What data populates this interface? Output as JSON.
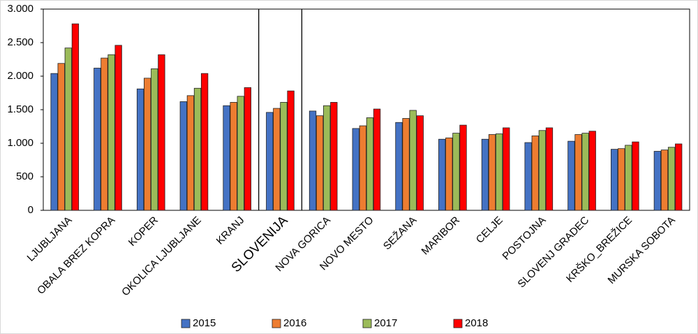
{
  "chart_data": {
    "type": "bar",
    "categories": [
      "LJUBLJANA",
      "OBALA BREZ KOPRA",
      "KOPER",
      "OKOLICA LJUBLJANE",
      "KRANJ",
      "SLOVENIJA",
      "NOVA GORICA",
      "NOVO MESTO",
      "SEŽANA",
      "MARIBOR",
      "CELJE",
      "POSTOJNA",
      "SLOVENJ GRADEC",
      "KRŠKO_BREŽICE",
      "MURSKA SOBOTA"
    ],
    "series": [
      {
        "name": "2015",
        "color": "#4472c4",
        "values": [
          2040,
          2120,
          1810,
          1620,
          1560,
          1460,
          1480,
          1220,
          1310,
          1060,
          1060,
          1010,
          1030,
          910,
          880
        ]
      },
      {
        "name": "2016",
        "color": "#ed7d31",
        "values": [
          2190,
          2270,
          1970,
          1710,
          1610,
          1520,
          1410,
          1260,
          1370,
          1080,
          1130,
          1110,
          1130,
          920,
          900
        ]
      },
      {
        "name": "2017",
        "color": "#9bbb59",
        "values": [
          2420,
          2320,
          2110,
          1820,
          1700,
          1610,
          1560,
          1380,
          1490,
          1150,
          1140,
          1190,
          1150,
          970,
          940
        ]
      },
      {
        "name": "2018",
        "color": "#ff0000",
        "values": [
          2780,
          2460,
          2320,
          2040,
          1830,
          1780,
          1610,
          1510,
          1410,
          1270,
          1230,
          1230,
          1180,
          1020,
          990
        ]
      }
    ],
    "ylim": [
      0,
      3000
    ],
    "yticks": [
      0,
      500,
      {
        "value": 1000,
        "label": "1.000"
      },
      {
        "value": 1500,
        "label": "1.500"
      },
      {
        "value": 2000,
        "label": "2.000"
      },
      {
        "value": 2500,
        "label": "2.500"
      },
      {
        "value": 3000,
        "label": "3.000"
      }
    ],
    "legend": "bottom"
  }
}
